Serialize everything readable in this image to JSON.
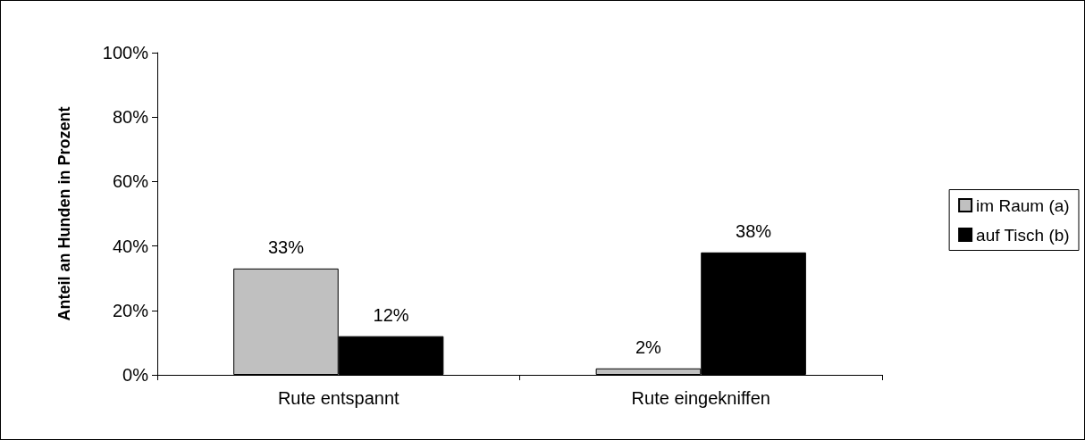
{
  "chart_data": {
    "type": "bar",
    "ylabel": "Anteil an Hunden in Prozent",
    "categories": [
      "Rute entspannt",
      "Rute eingekniffen"
    ],
    "series": [
      {
        "name": "im Raum (a)",
        "color": "#c0c0c0",
        "values": [
          33,
          2
        ],
        "value_labels": [
          "33%",
          "2%"
        ]
      },
      {
        "name": "auf Tisch (b)",
        "color": "#000000",
        "values": [
          12,
          38
        ],
        "value_labels": [
          "12%",
          "38%"
        ]
      }
    ],
    "ylim": [
      0,
      100
    ],
    "yticks": [
      {
        "value": 0,
        "label": "0%"
      },
      {
        "value": 20,
        "label": "20%"
      },
      {
        "value": 40,
        "label": "40%"
      },
      {
        "value": 60,
        "label": "60%"
      },
      {
        "value": 80,
        "label": "80%"
      },
      {
        "value": 100,
        "label": "100%"
      }
    ],
    "grid": false,
    "legend": "right"
  }
}
